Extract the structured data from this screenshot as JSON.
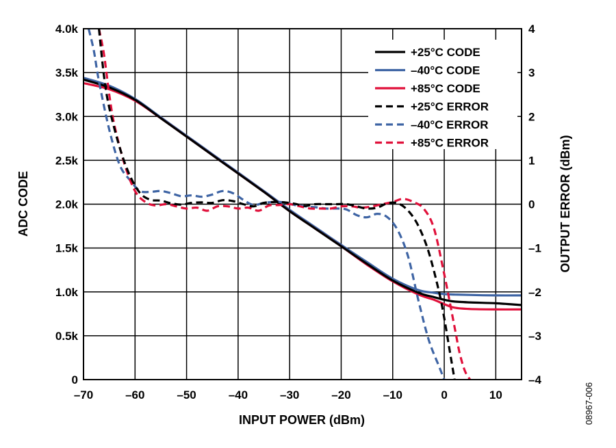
{
  "chart_data": {
    "type": "line",
    "figure_id": "08967-006",
    "xlabel": "INPUT POWER (dBm)",
    "ylabel_left": "ADC CODE",
    "ylabel_right": "OUTPUT ERROR (dBm)",
    "xlim": [
      -70,
      15
    ],
    "ylim_left": [
      0,
      4000
    ],
    "ylim_right": [
      -4,
      4
    ],
    "x_ticks": [
      -70,
      -60,
      -50,
      -40,
      -30,
      -20,
      -10,
      0,
      10
    ],
    "x_tick_labels": [
      "–70",
      "–60",
      "–50",
      "–40",
      "–30",
      "–20",
      "–10",
      "0",
      "10"
    ],
    "y_left_ticks": [
      0,
      500,
      1000,
      1500,
      2000,
      2500,
      3000,
      3500,
      4000
    ],
    "y_left_tick_labels": [
      "0",
      "0.5k",
      "1.0k",
      "1.5k",
      "2.0k",
      "2.5k",
      "3.0k",
      "3.5k",
      "4.0k"
    ],
    "y_right_ticks": [
      -4,
      -3,
      -2,
      -1,
      0,
      1,
      2,
      3,
      4
    ],
    "y_right_tick_labels": [
      "–4",
      "–3",
      "–2",
      "–1",
      "0",
      "1",
      "2",
      "3",
      "4"
    ],
    "grid": true,
    "legend_position": "top-right",
    "colors": {
      "black": "#000000",
      "blue": "#3e64a4",
      "red": "#e0103a"
    },
    "series": [
      {
        "name": "+25°C CODE",
        "axis": "left",
        "style": "solid",
        "color": "#000000",
        "x": [
          -70,
          -65,
          -60,
          -55,
          -50,
          -45,
          -40,
          -35,
          -30,
          -25,
          -20,
          -15,
          -10,
          -5,
          -2,
          0,
          2,
          5,
          10,
          15
        ],
        "y": [
          3420,
          3330,
          3190,
          2980,
          2770,
          2560,
          2350,
          2140,
          1920,
          1720,
          1520,
          1320,
          1130,
          990,
          940,
          910,
          890,
          880,
          870,
          850
        ]
      },
      {
        "name": "–40°C CODE",
        "axis": "left",
        "style": "solid",
        "color": "#3e64a4",
        "x": [
          -70,
          -65,
          -60,
          -55,
          -50,
          -45,
          -40,
          -35,
          -30,
          -25,
          -20,
          -15,
          -10,
          -5,
          -2,
          0,
          2,
          5,
          10,
          15
        ],
        "y": [
          3440,
          3350,
          3200,
          2990,
          2780,
          2570,
          2360,
          2150,
          1935,
          1735,
          1535,
          1340,
          1150,
          1020,
          990,
          975,
          970,
          965,
          960,
          960
        ]
      },
      {
        "name": "+85°C CODE",
        "axis": "left",
        "style": "solid",
        "color": "#e0103a",
        "x": [
          -70,
          -65,
          -60,
          -55,
          -50,
          -45,
          -40,
          -35,
          -30,
          -25,
          -20,
          -15,
          -10,
          -5,
          -2,
          0,
          2,
          5,
          10,
          15
        ],
        "y": [
          3380,
          3310,
          3180,
          2980,
          2770,
          2560,
          2350,
          2140,
          1920,
          1720,
          1520,
          1310,
          1120,
          970,
          910,
          860,
          820,
          805,
          800,
          800
        ]
      },
      {
        "name": "+25°C ERROR",
        "axis": "right",
        "style": "dashed",
        "color": "#000000",
        "x": [
          -67,
          -66,
          -65,
          -63,
          -61,
          -59,
          -57,
          -55,
          -53,
          -51,
          -49,
          -47,
          -45,
          -43,
          -41,
          -39,
          -37,
          -35,
          -33,
          -31,
          -29,
          -27,
          -25,
          -23,
          -21,
          -19,
          -17,
          -15,
          -13,
          -11,
          -9,
          -7,
          -5,
          -3,
          -1,
          0,
          1,
          2
        ],
        "y": [
          4,
          2.9,
          2.2,
          1.3,
          0.65,
          0.25,
          0.1,
          0.08,
          0.02,
          -0.01,
          0.03,
          0.04,
          0.03,
          0.09,
          0.07,
          0.0,
          -0.05,
          0.03,
          0.05,
          0.04,
          0.01,
          -0.04,
          0.0,
          0.0,
          0.0,
          0.0,
          -0.05,
          -0.1,
          -0.08,
          0.02,
          0.02,
          -0.15,
          -0.5,
          -1.1,
          -2.0,
          -2.6,
          -3.3,
          -4
        ]
      },
      {
        "name": "–40°C ERROR",
        "axis": "right",
        "style": "dashed",
        "color": "#3e64a4",
        "x": [
          -69,
          -68,
          -67,
          -65,
          -63,
          -61,
          -59,
          -57,
          -55,
          -53,
          -51,
          -49,
          -47,
          -45,
          -43,
          -41,
          -39,
          -37,
          -35,
          -33,
          -31,
          -29,
          -27,
          -25,
          -23,
          -21,
          -19,
          -17,
          -15,
          -13,
          -11,
          -9,
          -7,
          -5,
          -3,
          -1,
          0
        ],
        "y": [
          4,
          3.5,
          2.8,
          1.7,
          0.9,
          0.55,
          0.3,
          0.28,
          0.3,
          0.25,
          0.18,
          0.2,
          0.17,
          0.22,
          0.3,
          0.25,
          0.1,
          -0.02,
          0.03,
          0.05,
          0.04,
          -0.02,
          -0.05,
          -0.07,
          -0.1,
          -0.1,
          -0.12,
          -0.25,
          -0.3,
          -0.22,
          -0.3,
          -0.6,
          -1.2,
          -2.2,
          -3.1,
          -3.7,
          -4
        ]
      },
      {
        "name": "+85°C ERROR",
        "axis": "right",
        "style": "dashed",
        "color": "#e0103a",
        "x": [
          -67,
          -66,
          -65,
          -64,
          -62,
          -60,
          -58,
          -56,
          -54,
          -52,
          -50,
          -48,
          -46,
          -44,
          -42,
          -40,
          -38,
          -36,
          -34,
          -32,
          -30,
          -28,
          -26,
          -24,
          -22,
          -20,
          -18,
          -16,
          -14,
          -12,
          -10,
          -8,
          -6,
          -4,
          -2,
          0,
          2,
          3,
          4,
          5
        ],
        "y": [
          4,
          3.4,
          2.5,
          1.8,
          0.9,
          0.3,
          0.05,
          -0.03,
          0.0,
          -0.05,
          -0.1,
          -0.08,
          -0.15,
          -0.05,
          -0.05,
          -0.1,
          -0.08,
          -0.15,
          -0.03,
          -0.02,
          0.0,
          -0.05,
          -0.1,
          -0.1,
          -0.1,
          -0.05,
          -0.05,
          -0.08,
          -0.05,
          0.0,
          0.05,
          0.12,
          0.05,
          -0.1,
          -0.55,
          -1.6,
          -2.8,
          -3.4,
          -3.8,
          -4
        ]
      }
    ]
  }
}
